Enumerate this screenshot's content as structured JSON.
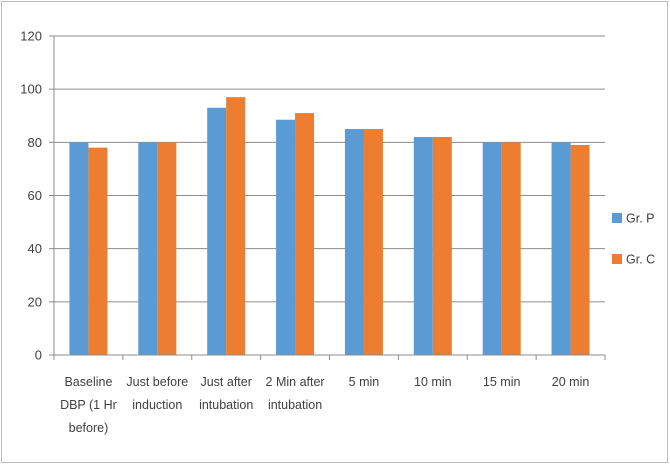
{
  "chart_data": {
    "type": "bar",
    "categories": [
      [
        "Baseline",
        "DBP (1 Hr",
        "before)"
      ],
      [
        "Just before",
        "induction"
      ],
      [
        "Just after",
        "intubation"
      ],
      [
        "2 Min after",
        "intubation"
      ],
      [
        "5 min"
      ],
      [
        "10 min"
      ],
      [
        "15 min"
      ],
      [
        "20 min"
      ]
    ],
    "series": [
      {
        "name": "Gr. P",
        "color": "#5b9bd5",
        "values": [
          80,
          80,
          93,
          88.5,
          85,
          82,
          80,
          80
        ]
      },
      {
        "name": "Gr. C",
        "color": "#ed7d31",
        "values": [
          78,
          80,
          97,
          91,
          85,
          82,
          80,
          79
        ]
      }
    ],
    "yticks": [
      "0",
      "20",
      "40",
      "60",
      "80",
      "100",
      "120"
    ],
    "ylim": [
      0,
      120
    ],
    "grid": true,
    "legend_position": "right"
  }
}
